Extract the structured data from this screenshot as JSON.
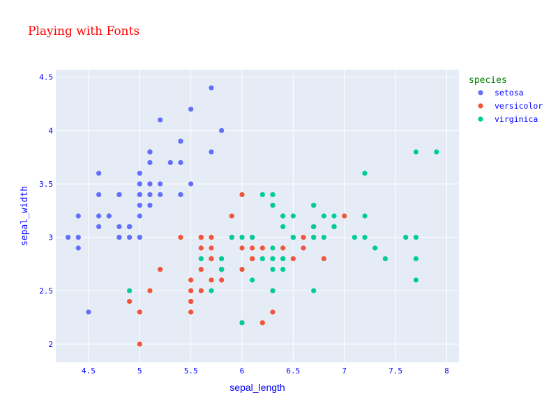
{
  "chart_data": {
    "type": "scatter",
    "title": "Playing with Fonts",
    "xlabel": "sepal_length",
    "ylabel": "sepal_width",
    "xlim": [
      4.18,
      8.12
    ],
    "ylim": [
      1.83,
      4.57
    ],
    "x_ticks": [
      4.5,
      5,
      5.5,
      6,
      6.5,
      7,
      7.5,
      8
    ],
    "x_tick_labels": [
      "4.5",
      "5",
      "5.5",
      "6",
      "6.5",
      "7",
      "7.5",
      "8"
    ],
    "y_ticks": [
      2,
      2.5,
      3,
      3.5,
      4,
      4.5
    ],
    "y_tick_labels": [
      "2",
      "2.5",
      "3",
      "3.5",
      "4",
      "4.5"
    ],
    "grid": true,
    "legend_title": "species",
    "legend_position": "right",
    "colors": {
      "title": "#ff0000",
      "axis_text": "#0000ff",
      "legend_title": "#008000",
      "plot_bg": "#e5ecf6",
      "grid": "#ffffff"
    },
    "series": [
      {
        "name": "setosa",
        "color": "#636efa",
        "points": [
          [
            5.1,
            3.5
          ],
          [
            4.9,
            3.0
          ],
          [
            4.7,
            3.2
          ],
          [
            4.6,
            3.1
          ],
          [
            5.0,
            3.6
          ],
          [
            5.4,
            3.9
          ],
          [
            4.6,
            3.4
          ],
          [
            5.0,
            3.4
          ],
          [
            4.4,
            2.9
          ],
          [
            4.9,
            3.1
          ],
          [
            5.4,
            3.7
          ],
          [
            4.8,
            3.4
          ],
          [
            4.8,
            3.0
          ],
          [
            4.3,
            3.0
          ],
          [
            5.8,
            4.0
          ],
          [
            5.7,
            4.4
          ],
          [
            5.4,
            3.9
          ],
          [
            5.1,
            3.5
          ],
          [
            5.7,
            3.8
          ],
          [
            5.1,
            3.8
          ],
          [
            5.4,
            3.4
          ],
          [
            5.1,
            3.7
          ],
          [
            4.6,
            3.6
          ],
          [
            5.1,
            3.3
          ],
          [
            4.8,
            3.4
          ],
          [
            5.0,
            3.0
          ],
          [
            5.0,
            3.4
          ],
          [
            5.2,
            3.5
          ],
          [
            5.2,
            3.4
          ],
          [
            4.7,
            3.2
          ],
          [
            4.8,
            3.1
          ],
          [
            5.4,
            3.4
          ],
          [
            5.2,
            4.1
          ],
          [
            5.5,
            4.2
          ],
          [
            4.9,
            3.1
          ],
          [
            5.0,
            3.2
          ],
          [
            5.5,
            3.5
          ],
          [
            4.9,
            3.1
          ],
          [
            4.4,
            3.0
          ],
          [
            5.1,
            3.4
          ],
          [
            5.0,
            3.5
          ],
          [
            4.5,
            2.3
          ],
          [
            4.4,
            3.2
          ],
          [
            5.0,
            3.5
          ],
          [
            5.1,
            3.8
          ],
          [
            4.8,
            3.0
          ],
          [
            5.1,
            3.8
          ],
          [
            4.6,
            3.2
          ],
          [
            5.3,
            3.7
          ],
          [
            5.0,
            3.3
          ]
        ]
      },
      {
        "name": "versicolor",
        "color": "#ef553b",
        "points": [
          [
            7.0,
            3.2
          ],
          [
            6.4,
            3.2
          ],
          [
            6.9,
            3.1
          ],
          [
            5.5,
            2.3
          ],
          [
            6.5,
            2.8
          ],
          [
            5.7,
            2.8
          ],
          [
            6.3,
            3.3
          ],
          [
            4.9,
            2.4
          ],
          [
            6.6,
            2.9
          ],
          [
            5.2,
            2.7
          ],
          [
            5.0,
            2.0
          ],
          [
            5.9,
            3.0
          ],
          [
            6.0,
            2.2
          ],
          [
            6.1,
            2.9
          ],
          [
            5.6,
            2.9
          ],
          [
            6.7,
            3.1
          ],
          [
            5.6,
            3.0
          ],
          [
            5.8,
            2.7
          ],
          [
            6.2,
            2.2
          ],
          [
            5.6,
            2.5
          ],
          [
            5.9,
            3.2
          ],
          [
            6.1,
            2.8
          ],
          [
            6.3,
            2.5
          ],
          [
            6.1,
            2.8
          ],
          [
            6.4,
            2.9
          ],
          [
            6.6,
            3.0
          ],
          [
            6.8,
            2.8
          ],
          [
            6.7,
            3.0
          ],
          [
            6.0,
            2.9
          ],
          [
            5.7,
            2.6
          ],
          [
            5.5,
            2.4
          ],
          [
            5.5,
            2.4
          ],
          [
            5.8,
            2.7
          ],
          [
            6.0,
            2.7
          ],
          [
            5.4,
            3.0
          ],
          [
            6.0,
            3.4
          ],
          [
            6.7,
            3.1
          ],
          [
            6.3,
            2.3
          ],
          [
            5.6,
            3.0
          ],
          [
            5.5,
            2.5
          ],
          [
            5.5,
            2.6
          ],
          [
            6.1,
            3.0
          ],
          [
            5.8,
            2.6
          ],
          [
            5.0,
            2.3
          ],
          [
            5.6,
            2.7
          ],
          [
            5.7,
            3.0
          ],
          [
            5.7,
            2.9
          ],
          [
            6.2,
            2.9
          ],
          [
            5.1,
            2.5
          ],
          [
            5.7,
            2.8
          ]
        ]
      },
      {
        "name": "virginica",
        "color": "#00cc96",
        "points": [
          [
            6.3,
            3.3
          ],
          [
            5.8,
            2.7
          ],
          [
            7.1,
            3.0
          ],
          [
            6.3,
            2.9
          ],
          [
            6.5,
            3.0
          ],
          [
            7.6,
            3.0
          ],
          [
            4.9,
            2.5
          ],
          [
            7.3,
            2.9
          ],
          [
            6.7,
            2.5
          ],
          [
            7.2,
            3.6
          ],
          [
            6.5,
            3.2
          ],
          [
            6.4,
            2.7
          ],
          [
            6.8,
            3.0
          ],
          [
            5.7,
            2.5
          ],
          [
            5.8,
            2.8
          ],
          [
            6.4,
            3.2
          ],
          [
            6.5,
            3.0
          ],
          [
            7.7,
            3.8
          ],
          [
            7.7,
            2.6
          ],
          [
            6.0,
            2.2
          ],
          [
            6.9,
            3.2
          ],
          [
            5.6,
            2.8
          ],
          [
            7.7,
            2.8
          ],
          [
            6.3,
            2.7
          ],
          [
            6.7,
            3.3
          ],
          [
            7.2,
            3.2
          ],
          [
            6.2,
            2.8
          ],
          [
            6.1,
            3.0
          ],
          [
            6.4,
            2.8
          ],
          [
            7.2,
            3.0
          ],
          [
            7.4,
            2.8
          ],
          [
            7.9,
            3.8
          ],
          [
            6.4,
            2.8
          ],
          [
            6.3,
            2.8
          ],
          [
            6.1,
            2.6
          ],
          [
            7.7,
            3.0
          ],
          [
            6.3,
            3.4
          ],
          [
            6.4,
            3.1
          ],
          [
            6.0,
            3.0
          ],
          [
            6.9,
            3.1
          ],
          [
            6.7,
            3.1
          ],
          [
            6.9,
            3.1
          ],
          [
            5.8,
            2.7
          ],
          [
            6.8,
            3.2
          ],
          [
            6.7,
            3.3
          ],
          [
            6.7,
            3.0
          ],
          [
            6.3,
            2.5
          ],
          [
            6.5,
            3.0
          ],
          [
            6.2,
            3.4
          ],
          [
            5.9,
            3.0
          ]
        ]
      }
    ]
  }
}
